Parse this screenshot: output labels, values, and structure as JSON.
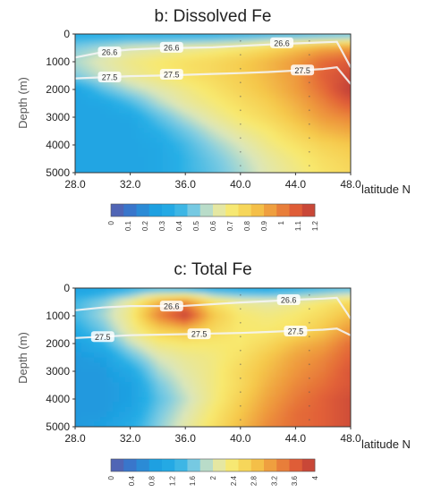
{
  "panels": [
    {
      "title": "b: Dissolved Fe",
      "ylabel": "Depth (m)",
      "xlabel": "latitude N",
      "xticks": [
        "28.0",
        "32.0",
        "36.0",
        "40.0",
        "44.0",
        "48.0"
      ],
      "yticks": [
        "0",
        "1000",
        "2000",
        "3000",
        "4000",
        "5000"
      ],
      "contour_labels": [
        {
          "text": "26.6",
          "lat": 30.5,
          "depth": 650
        },
        {
          "text": "26.6",
          "lat": 35.0,
          "depth": 480
        },
        {
          "text": "26.6",
          "lat": 43.0,
          "depth": 320
        },
        {
          "text": "27.5",
          "lat": 30.5,
          "depth": 1550
        },
        {
          "text": "27.5",
          "lat": 35.0,
          "depth": 1450
        },
        {
          "text": "27.5",
          "lat": 44.5,
          "depth": 1300
        }
      ],
      "colorbar_ticks": [
        "0",
        "0.1",
        "0.2",
        "0.3",
        "0.4",
        "0.5",
        "0.6",
        "0.7",
        "0.8",
        "0.9",
        "1",
        "1.1",
        "1.2"
      ]
    },
    {
      "title": "c: Total Fe",
      "ylabel": "Depth (m)",
      "xlabel": "latitude N",
      "xticks": [
        "28.0",
        "32.0",
        "36.0",
        "40.0",
        "44.0",
        "48.0"
      ],
      "yticks": [
        "0",
        "1000",
        "2000",
        "3000",
        "4000",
        "5000"
      ],
      "contour_labels": [
        {
          "text": "26.6",
          "lat": 35.0,
          "depth": 650
        },
        {
          "text": "26.6",
          "lat": 43.5,
          "depth": 420
        },
        {
          "text": "27.5",
          "lat": 30.0,
          "depth": 1750
        },
        {
          "text": "27.5",
          "lat": 37.0,
          "depth": 1650
        },
        {
          "text": "27.5",
          "lat": 44.0,
          "depth": 1550
        }
      ],
      "colorbar_ticks": [
        "0",
        "0.4",
        "0.8",
        "1.2",
        "1.6",
        "2",
        "2.4",
        "2.8",
        "3.2",
        "3.6",
        "4"
      ]
    }
  ],
  "chart_data": [
    {
      "type": "heatmap",
      "title": "b: Dissolved Fe",
      "xlabel": "latitude N",
      "ylabel": "Depth (m)",
      "xlim": [
        28,
        48
      ],
      "ylim": [
        0,
        5000
      ],
      "x": [
        28,
        30,
        32,
        34,
        36,
        38,
        40,
        42,
        44,
        46,
        48
      ],
      "y": [
        0,
        500,
        1000,
        1500,
        2000,
        2500,
        3000,
        3500,
        4000,
        4500,
        5000
      ],
      "z": [
        [
          0.35,
          0.35,
          0.35,
          0.35,
          0.35,
          0.35,
          0.36,
          0.37,
          0.38,
          0.4,
          0.42
        ],
        [
          0.5,
          0.55,
          0.6,
          0.62,
          0.65,
          0.68,
          0.72,
          0.78,
          0.85,
          0.92,
          0.95
        ],
        [
          0.55,
          0.62,
          0.68,
          0.72,
          0.75,
          0.78,
          0.82,
          0.88,
          0.95,
          1.05,
          1.1
        ],
        [
          0.5,
          0.58,
          0.65,
          0.7,
          0.74,
          0.78,
          0.82,
          0.88,
          0.95,
          1.08,
          1.15
        ],
        [
          0.3,
          0.45,
          0.55,
          0.62,
          0.68,
          0.74,
          0.8,
          0.86,
          0.94,
          1.05,
          1.2
        ],
        [
          0.3,
          0.32,
          0.42,
          0.55,
          0.64,
          0.7,
          0.76,
          0.82,
          0.9,
          1.0,
          1.1
        ],
        [
          0.3,
          0.3,
          0.32,
          0.45,
          0.56,
          0.65,
          0.72,
          0.78,
          0.86,
          0.95,
          1.0
        ],
        [
          0.3,
          0.3,
          0.3,
          0.38,
          0.48,
          0.58,
          0.66,
          0.72,
          0.8,
          0.88,
          0.92
        ],
        [
          0.3,
          0.3,
          0.3,
          0.33,
          0.42,
          0.52,
          0.6,
          0.68,
          0.74,
          0.8,
          0.84
        ],
        [
          0.3,
          0.3,
          0.3,
          0.32,
          0.4,
          0.48,
          0.56,
          0.64,
          0.7,
          0.76,
          0.8
        ],
        [
          0.3,
          0.3,
          0.3,
          0.32,
          0.4,
          0.46,
          0.54,
          0.62,
          0.68,
          0.74,
          0.78
        ]
      ],
      "contours": [
        {
          "label": "26.6",
          "lat": [
            28,
            30,
            32,
            34,
            36,
            38,
            40,
            42,
            44,
            46,
            47,
            48
          ],
          "depth": [
            850,
            650,
            560,
            520,
            500,
            480,
            430,
            380,
            340,
            300,
            280,
            1200
          ]
        },
        {
          "label": "27.5",
          "lat": [
            28,
            30,
            32,
            34,
            36,
            38,
            40,
            42,
            44,
            46,
            47,
            48
          ],
          "depth": [
            1600,
            1560,
            1520,
            1500,
            1470,
            1440,
            1410,
            1370,
            1320,
            1260,
            1200,
            1800
          ]
        }
      ],
      "colorbar": {
        "min": 0,
        "max": 1.2,
        "ticks": [
          0,
          0.1,
          0.2,
          0.3,
          0.4,
          0.5,
          0.6,
          0.7,
          0.8,
          0.9,
          1,
          1.1,
          1.2
        ]
      },
      "legend": "bottom"
    },
    {
      "type": "heatmap",
      "title": "c: Total Fe",
      "xlabel": "latitude N",
      "ylabel": "Depth (m)",
      "xlim": [
        28,
        48
      ],
      "ylim": [
        0,
        5000
      ],
      "x": [
        28,
        30,
        32,
        34,
        36,
        38,
        40,
        42,
        44,
        46,
        48
      ],
      "y": [
        0,
        500,
        1000,
        1500,
        2000,
        2500,
        3000,
        3500,
        4000,
        4500,
        5000
      ],
      "z": [
        [
          0.9,
          1.0,
          1.2,
          1.3,
          1.2,
          1.1,
          1.1,
          1.1,
          1.2,
          1.3,
          1.4
        ],
        [
          1.4,
          1.7,
          2.2,
          3.0,
          3.3,
          2.5,
          2.2,
          2.1,
          2.2,
          2.4,
          2.6
        ],
        [
          1.4,
          1.8,
          2.3,
          3.3,
          3.9,
          2.8,
          2.4,
          2.3,
          2.4,
          2.6,
          2.9
        ],
        [
          1.2,
          1.6,
          2.2,
          2.7,
          2.9,
          2.6,
          2.4,
          2.4,
          2.5,
          2.8,
          3.2
        ],
        [
          0.9,
          1.3,
          1.9,
          2.3,
          2.4,
          2.4,
          2.4,
          2.6,
          2.9,
          3.1,
          3.5
        ],
        [
          0.8,
          0.9,
          1.5,
          2.0,
          2.2,
          2.3,
          2.5,
          2.8,
          3.1,
          3.3,
          3.6
        ],
        [
          0.8,
          0.8,
          1.1,
          1.8,
          2.1,
          2.3,
          2.6,
          2.9,
          3.2,
          3.4,
          3.7
        ],
        [
          0.8,
          0.8,
          0.9,
          1.6,
          2.0,
          2.3,
          2.6,
          3.0,
          3.3,
          3.5,
          3.7
        ],
        [
          0.8,
          0.8,
          0.9,
          1.5,
          1.9,
          2.3,
          2.7,
          3.1,
          3.4,
          3.6,
          3.8
        ],
        [
          0.8,
          0.8,
          1.0,
          1.6,
          2.0,
          2.4,
          2.8,
          3.2,
          3.5,
          3.6,
          3.8
        ],
        [
          0.8,
          0.9,
          1.2,
          1.7,
          2.1,
          2.5,
          2.9,
          3.3,
          3.5,
          3.6,
          3.8
        ]
      ],
      "contours": [
        {
          "label": "26.6",
          "lat": [
            28,
            30,
            32,
            34,
            36,
            38,
            40,
            42,
            44,
            46,
            47,
            48
          ],
          "depth": [
            800,
            700,
            650,
            650,
            640,
            580,
            520,
            470,
            420,
            380,
            350,
            1100
          ]
        },
        {
          "label": "27.5",
          "lat": [
            28,
            30,
            32,
            34,
            36,
            38,
            40,
            42,
            44,
            46,
            47,
            48
          ],
          "depth": [
            1800,
            1750,
            1700,
            1680,
            1660,
            1640,
            1620,
            1580,
            1540,
            1500,
            1460,
            1700
          ]
        }
      ],
      "colorbar": {
        "min": 0,
        "max": 4,
        "ticks": [
          0,
          0.4,
          0.8,
          1.2,
          1.6,
          2,
          2.4,
          2.8,
          3.2,
          3.6,
          4
        ]
      },
      "legend": "bottom"
    }
  ]
}
